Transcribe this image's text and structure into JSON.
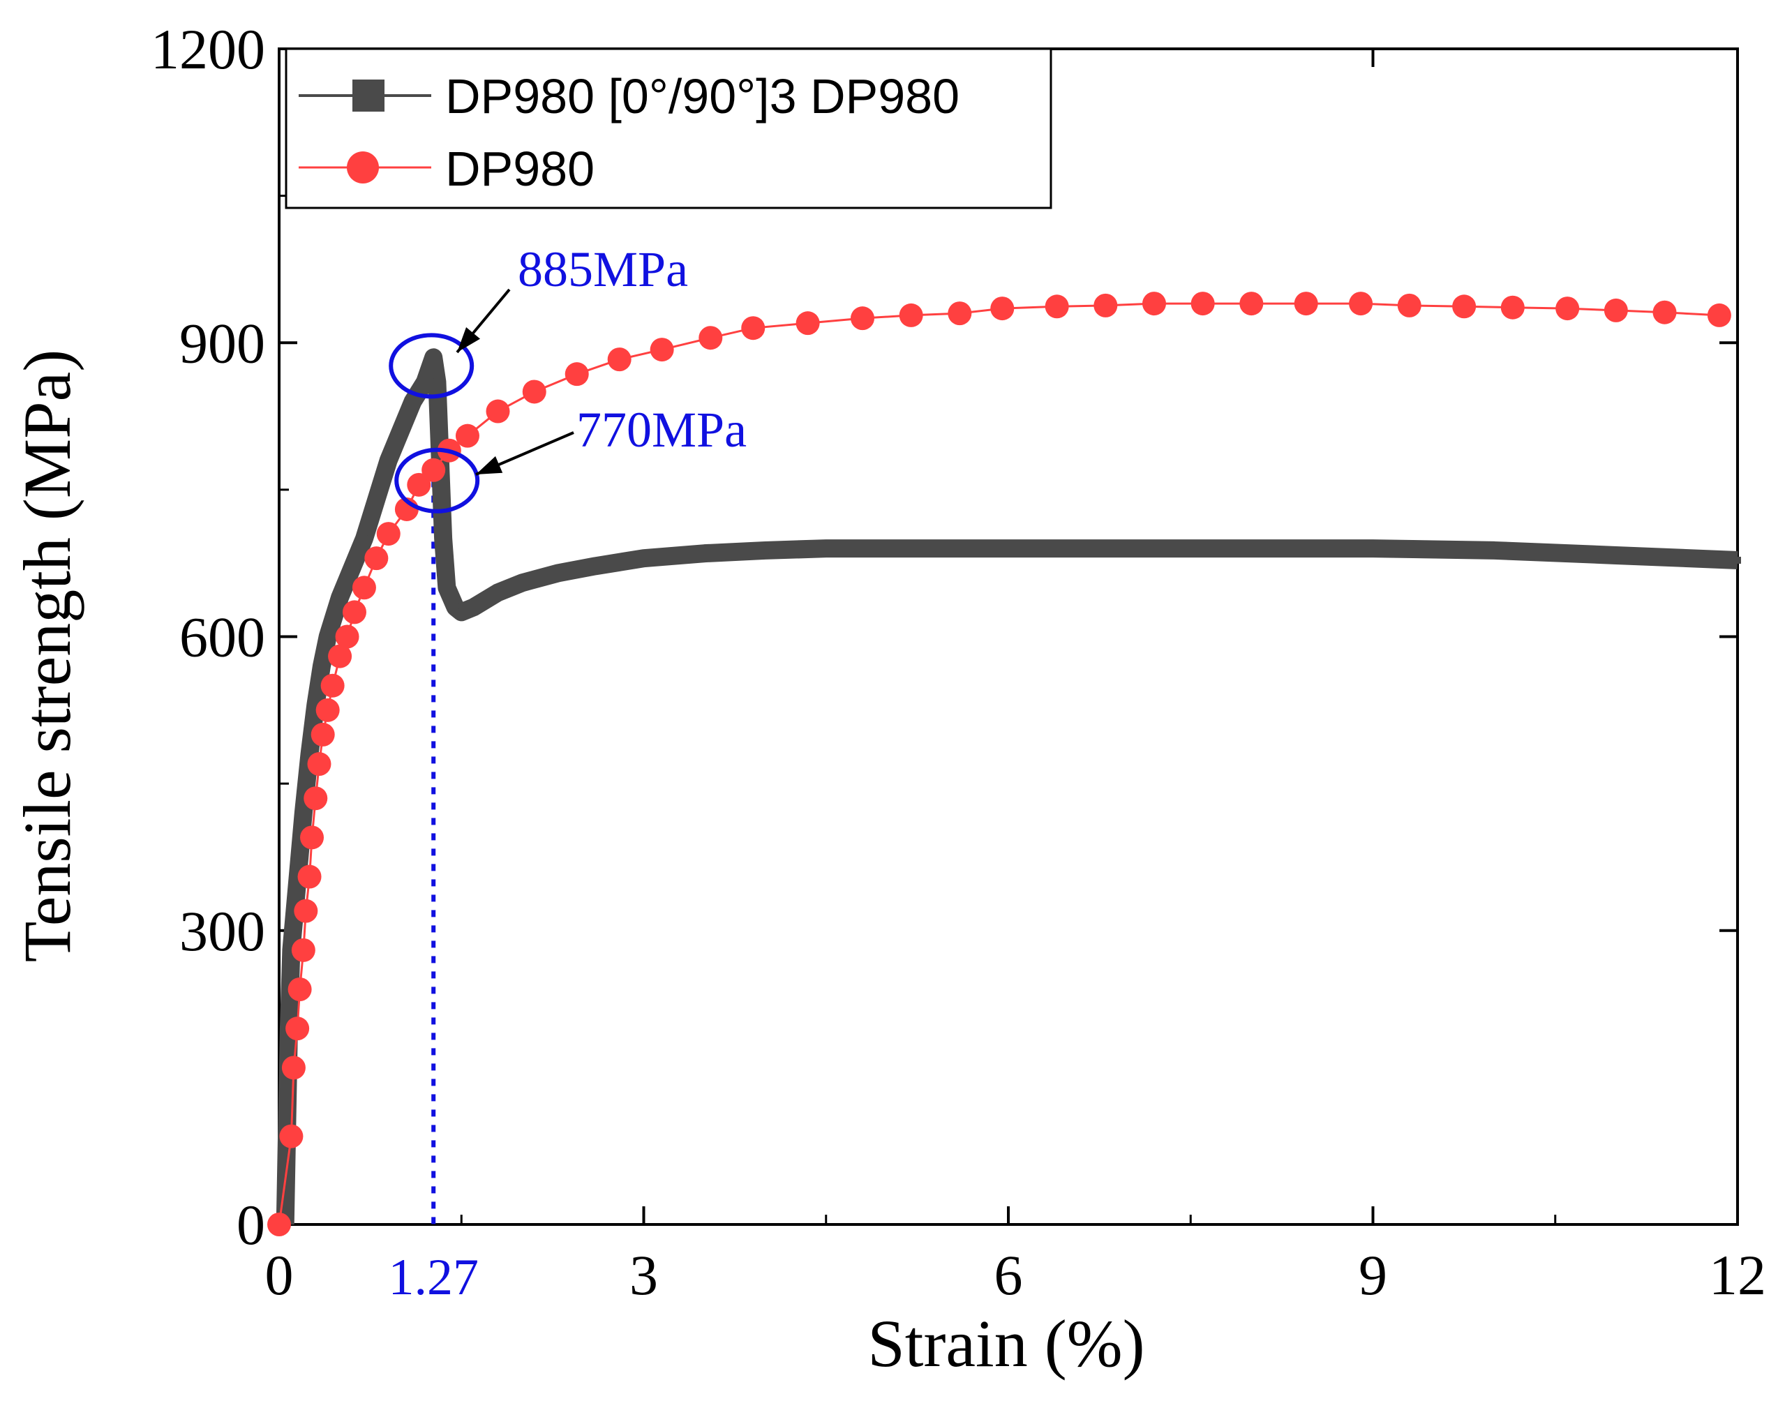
{
  "chart_data": {
    "type": "line",
    "xlabel": "Strain (%)",
    "ylabel": "Tensile strength (MPa)",
    "xlim": [
      0,
      12
    ],
    "ylim": [
      0,
      1200
    ],
    "x_ticks": [
      0,
      3,
      6,
      9,
      12
    ],
    "x_tick_labels": [
      "0",
      "3",
      "6",
      "9",
      "12"
    ],
    "y_ticks": [
      0,
      300,
      600,
      900,
      1200
    ],
    "y_tick_labels": [
      "0",
      "300",
      "600",
      "900",
      "1200"
    ],
    "grid": false,
    "legend_position": "top-left",
    "series": [
      {
        "name": "DP980 [0°/90°]3 DP980",
        "color": "#4a4a4a",
        "marker": "square",
        "x": [
          0.05,
          0.08,
          0.1,
          0.15,
          0.2,
          0.25,
          0.3,
          0.35,
          0.4,
          0.5,
          0.6,
          0.7,
          0.8,
          0.9,
          1.0,
          1.1,
          1.2,
          1.27,
          1.3,
          1.35,
          1.38,
          1.45,
          1.5,
          1.6,
          1.8,
          2.0,
          2.3,
          2.6,
          3.0,
          3.5,
          4.0,
          4.5,
          5.0,
          6.0,
          7.0,
          8.0,
          9.0,
          10.0,
          11.0,
          12.0
        ],
        "y": [
          0,
          200,
          280,
          350,
          420,
          480,
          530,
          570,
          600,
          640,
          670,
          700,
          740,
          780,
          810,
          840,
          860,
          885,
          860,
          700,
          650,
          630,
          625,
          630,
          645,
          655,
          665,
          672,
          680,
          685,
          688,
          690,
          690,
          690,
          690,
          690,
          690,
          688,
          683,
          678
        ]
      },
      {
        "name": "DP980",
        "color": "#ff4040",
        "marker": "circle",
        "x": [
          0.0,
          0.1,
          0.12,
          0.15,
          0.17,
          0.2,
          0.22,
          0.25,
          0.27,
          0.3,
          0.33,
          0.36,
          0.4,
          0.44,
          0.5,
          0.56,
          0.62,
          0.7,
          0.8,
          0.9,
          1.05,
          1.15,
          1.27,
          1.4,
          1.55,
          1.8,
          2.1,
          2.45,
          2.8,
          3.15,
          3.55,
          3.9,
          4.35,
          4.8,
          5.2,
          5.6,
          5.95,
          6.4,
          6.8,
          7.2,
          7.6,
          8.0,
          8.45,
          8.9,
          9.3,
          9.75,
          10.15,
          10.6,
          11.0,
          11.4,
          11.85
        ],
        "y": [
          0,
          90,
          160,
          200,
          240,
          280,
          320,
          355,
          395,
          435,
          470,
          500,
          525,
          550,
          580,
          600,
          625,
          650,
          680,
          705,
          730,
          755,
          770,
          790,
          805,
          830,
          850,
          868,
          883,
          893,
          905,
          915,
          920,
          925,
          928,
          930,
          935,
          937,
          938,
          940,
          940,
          940,
          940,
          940,
          938,
          937,
          936,
          935,
          933,
          931,
          928
        ]
      }
    ],
    "annotations": [
      {
        "text": "885MPa",
        "x": 1.27,
        "y": 885
      },
      {
        "text": "770MPa",
        "x": 1.27,
        "y": 770
      }
    ],
    "reference_line": {
      "x": 1.27,
      "label": "1.27",
      "color": "#1010e0"
    }
  }
}
